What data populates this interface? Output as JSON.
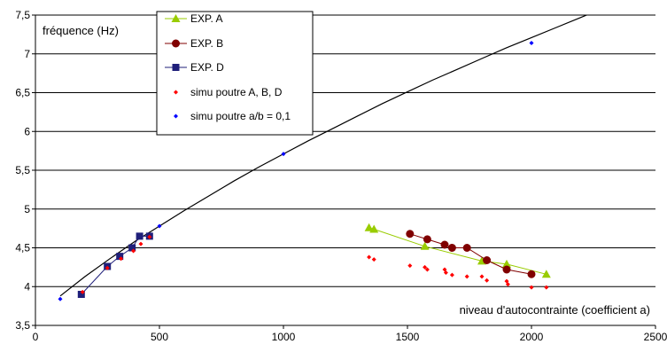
{
  "chart_data": {
    "type": "scatter",
    "title": "",
    "ylabel": "fréquence (Hz)",
    "xlabel": "niveau d'autocontrainte (coefficient a)",
    "xlim": [
      0,
      2500
    ],
    "ylim": [
      3.5,
      7.5
    ],
    "xticks": [
      0,
      500,
      1000,
      1500,
      2000,
      2500
    ],
    "yticks": [
      3.5,
      4,
      4.5,
      5,
      5.5,
      6,
      6.5,
      7,
      7.5
    ],
    "x_tick_labels": [
      "0",
      "500",
      "1000",
      "1500",
      "2000",
      "2500"
    ],
    "y_tick_labels": [
      "3,5",
      "4",
      "4,5",
      "5",
      "5,5",
      "6",
      "6,5",
      "7",
      "7,5"
    ],
    "grid": "horizontal",
    "legend_position": "top-left",
    "series": [
      {
        "name": "EXP. A",
        "marker": "triangle",
        "color": "#99CC00",
        "line": true,
        "points": [
          [
            1345,
            4.76
          ],
          [
            1365,
            4.74
          ],
          [
            1570,
            4.52
          ],
          [
            1800,
            4.33
          ],
          [
            1900,
            4.29
          ],
          [
            2060,
            4.16
          ]
        ]
      },
      {
        "name": "EXP. B",
        "marker": "circle",
        "color": "#800000",
        "line": true,
        "points": [
          [
            1510,
            4.68
          ],
          [
            1580,
            4.61
          ],
          [
            1650,
            4.54
          ],
          [
            1680,
            4.5
          ],
          [
            1740,
            4.5
          ],
          [
            1820,
            4.34
          ],
          [
            1900,
            4.22
          ],
          [
            2000,
            4.16
          ]
        ]
      },
      {
        "name": "EXP. D",
        "marker": "square",
        "color": "#1F1F7A",
        "line": true,
        "points": [
          [
            185,
            3.9
          ],
          [
            290,
            4.26
          ],
          [
            340,
            4.39
          ],
          [
            390,
            4.5
          ],
          [
            420,
            4.65
          ],
          [
            460,
            4.65
          ]
        ]
      },
      {
        "name": "simu poutre A, B, D",
        "marker": "diamond",
        "color": "#FF0000",
        "line": false,
        "points": [
          [
            190,
            3.93
          ],
          [
            290,
            4.24
          ],
          [
            345,
            4.36
          ],
          [
            395,
            4.46
          ],
          [
            425,
            4.55
          ],
          [
            460,
            4.64
          ],
          [
            1345,
            4.38
          ],
          [
            1365,
            4.35
          ],
          [
            1510,
            4.27
          ],
          [
            1570,
            4.25
          ],
          [
            1580,
            4.22
          ],
          [
            1650,
            4.22
          ],
          [
            1655,
            4.18
          ],
          [
            1680,
            4.15
          ],
          [
            1740,
            4.13
          ],
          [
            1800,
            4.13
          ],
          [
            1820,
            4.08
          ],
          [
            1900,
            4.07
          ],
          [
            1905,
            4.03
          ],
          [
            2000,
            3.99
          ],
          [
            2060,
            3.99
          ]
        ]
      },
      {
        "name": "simu poutre a/b = 0,1",
        "marker": "diamond",
        "color": "#0000FF",
        "line": false,
        "points": [
          [
            100,
            3.84
          ],
          [
            500,
            4.78
          ],
          [
            1000,
            5.71
          ],
          [
            2000,
            7.14
          ]
        ]
      }
    ],
    "trend_curve": {
      "color": "#000000",
      "points": [
        [
          100,
          3.88
        ],
        [
          200,
          4.13
        ],
        [
          300,
          4.36
        ],
        [
          400,
          4.58
        ],
        [
          500,
          4.78
        ],
        [
          600,
          4.98
        ],
        [
          700,
          5.17
        ],
        [
          800,
          5.36
        ],
        [
          900,
          5.54
        ],
        [
          1000,
          5.71
        ],
        [
          1100,
          5.88
        ],
        [
          1200,
          6.04
        ],
        [
          1300,
          6.2
        ],
        [
          1400,
          6.36
        ],
        [
          1500,
          6.51
        ],
        [
          1600,
          6.66
        ],
        [
          1700,
          6.8
        ],
        [
          1800,
          6.94
        ],
        [
          1900,
          7.08
        ],
        [
          2000,
          7.21
        ],
        [
          2100,
          7.34
        ],
        [
          2200,
          7.47
        ],
        [
          2260,
          7.55
        ]
      ]
    }
  }
}
